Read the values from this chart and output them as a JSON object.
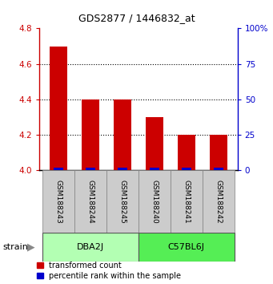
{
  "title": "GDS2877 / 1446832_at",
  "samples": [
    "GSM188243",
    "GSM188244",
    "GSM188245",
    "GSM188240",
    "GSM188241",
    "GSM188242"
  ],
  "red_values": [
    4.7,
    4.4,
    4.4,
    4.3,
    4.2,
    4.2
  ],
  "blue_percentiles": [
    2.0,
    2.0,
    2.0,
    2.0,
    2.0,
    2.0
  ],
  "ylim_left": [
    4.0,
    4.8
  ],
  "ylim_right": [
    0,
    100
  ],
  "yticks_left": [
    4.0,
    4.2,
    4.4,
    4.6,
    4.8
  ],
  "yticks_right": [
    0,
    25,
    50,
    75,
    100
  ],
  "ytick_right_labels": [
    "0",
    "25",
    "50",
    "75",
    "100%"
  ],
  "groups": [
    {
      "label": "DBA2J",
      "indices": [
        0,
        1,
        2
      ],
      "color": "#b3ffb3"
    },
    {
      "label": "C57BL6J",
      "indices": [
        3,
        4,
        5
      ],
      "color": "#55ee55"
    }
  ],
  "bar_color_red": "#cc0000",
  "bar_color_blue": "#0000cc",
  "bar_width": 0.55,
  "blue_bar_width": 0.3,
  "sample_box_color": "#cccccc",
  "legend_red": "transformed count",
  "legend_blue": "percentile rank within the sample",
  "strain_label": "strain",
  "ylabel_left_color": "#cc0000",
  "ylabel_right_color": "#0000cc",
  "grid_lines": [
    4.2,
    4.4,
    4.6
  ],
  "title_fontsize": 9,
  "tick_fontsize": 7.5,
  "sample_fontsize": 6.5,
  "group_fontsize": 8,
  "legend_fontsize": 7
}
